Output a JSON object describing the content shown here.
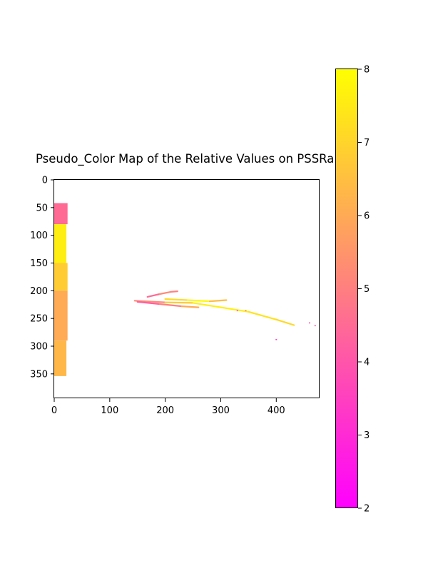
{
  "chart_data": {
    "type": "heatmap",
    "title": "Pseudo_Color Map of the Relative Values on PSSRa",
    "xlabel": "",
    "ylabel": "",
    "xlim": [
      0,
      478
    ],
    "ylim": [
      394,
      0
    ],
    "x_ticks": [
      0,
      100,
      200,
      300,
      400
    ],
    "y_ticks": [
      0,
      50,
      100,
      150,
      200,
      250,
      300,
      350
    ],
    "colormap": "spring",
    "colorbar": {
      "min": 2,
      "max": 8,
      "ticks": [
        2,
        3,
        4,
        5,
        6,
        7,
        8
      ],
      "color_low": "#ff00ff",
      "color_high": "#ffff00"
    },
    "regions": [
      {
        "name": "left strip",
        "x_range": [
          0,
          24
        ],
        "y_range": [
          40,
          355
        ],
        "value_range": [
          3,
          8
        ],
        "dominant_value": 6.5,
        "patches": [
          {
            "x": [
              0,
              24
            ],
            "y": [
              42,
              80
            ],
            "value": 4.5
          },
          {
            "x": [
              0,
              22
            ],
            "y": [
              80,
              150
            ],
            "value": 7.6
          },
          {
            "x": [
              0,
              24
            ],
            "y": [
              150,
              200
            ],
            "value": 6.8
          },
          {
            "x": [
              0,
              24
            ],
            "y": [
              200,
              290
            ],
            "value": 6.0
          },
          {
            "x": [
              0,
              22
            ],
            "y": [
              290,
              354
            ],
            "value": 6.3
          }
        ]
      },
      {
        "name": "upper short streak",
        "points": [
          [
            168,
            211
          ],
          [
            190,
            206
          ],
          [
            210,
            202
          ],
          [
            222,
            201
          ]
        ],
        "values": [
          4.0,
          5.0,
          5.5,
          4.5
        ]
      },
      {
        "name": "main streak",
        "points": [
          [
            145,
            218
          ],
          [
            200,
            221
          ],
          [
            250,
            222
          ],
          [
            300,
            230
          ],
          [
            350,
            238
          ],
          [
            400,
            252
          ],
          [
            432,
            262
          ]
        ],
        "values": [
          4.5,
          6.0,
          7.5,
          7.8,
          7.5,
          7.2,
          7.0
        ]
      },
      {
        "name": "middle streak",
        "points": [
          [
            200,
            215
          ],
          [
            240,
            217
          ],
          [
            280,
            219
          ],
          [
            310,
            217
          ]
        ],
        "values": [
          6.5,
          7.8,
          7.9,
          5.0
        ]
      },
      {
        "name": "lower short streak",
        "points": [
          [
            150,
            220
          ],
          [
            190,
            224
          ],
          [
            230,
            228
          ],
          [
            260,
            230
          ]
        ],
        "values": [
          4.0,
          4.5,
          5.5,
          6.5
        ]
      },
      {
        "name": "isolated points",
        "points": [
          [
            400,
            288
          ],
          [
            460,
            258
          ],
          [
            470,
            263
          ],
          [
            330,
            236
          ],
          [
            345,
            236
          ]
        ],
        "values": [
          3.5,
          4.0,
          4.2,
          4.0,
          4.5
        ]
      }
    ]
  }
}
